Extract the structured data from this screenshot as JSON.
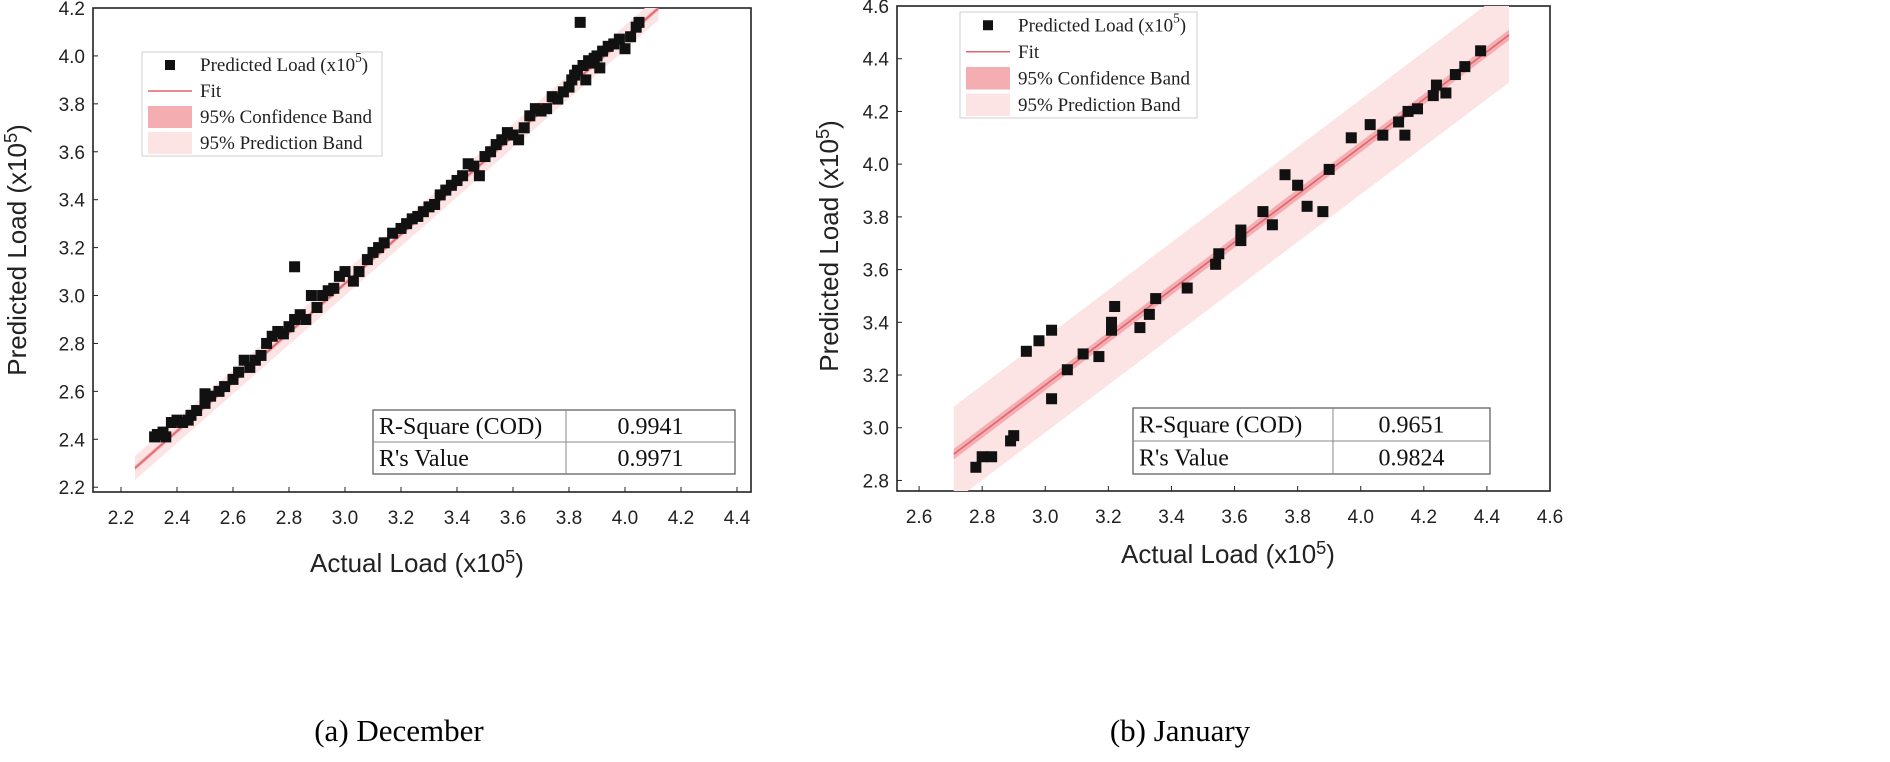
{
  "chart_data": [
    {
      "type": "scatter",
      "caption": "(a) December",
      "xlabel_prefix": "Actual Load (x10",
      "xlabel_sup": "5",
      "xlabel_suffix": ")",
      "ylabel_prefix": "Predicted Load (x10",
      "ylabel_sup": "5",
      "ylabel_suffix": ")",
      "xlim": [
        2.1,
        4.45
      ],
      "ylim": [
        2.18,
        4.2
      ],
      "xticks": [
        "2.2",
        "2.4",
        "2.6",
        "2.8",
        "3.0",
        "3.2",
        "3.4",
        "3.6",
        "3.8",
        "4.0",
        "4.2",
        "4.4"
      ],
      "yticks": [
        "2.2",
        "2.4",
        "2.6",
        "2.8",
        "3.0",
        "3.2",
        "3.4",
        "3.6",
        "3.8",
        "4.0",
        "4.2"
      ],
      "legend": [
        {
          "kind": "marker",
          "label": "Predicted Load (x10",
          "sup": "5",
          "suffix": ")"
        },
        {
          "kind": "line",
          "label": "Fit"
        },
        {
          "kind": "conf",
          "label": "95% Confidence Band"
        },
        {
          "kind": "pred",
          "label": "95% Prediction Band"
        }
      ],
      "fit": {
        "x": [
          2.25,
          4.12
        ],
        "y": [
          2.28,
          4.2
        ]
      },
      "confidence_halfwidth": 0.01,
      "prediction_halfwidth": 0.05,
      "stats": [
        {
          "label": "R-Square (COD)",
          "value": "0.9941"
        },
        {
          "label": "R's Value",
          "value": "0.9971"
        }
      ],
      "points": [
        [
          2.32,
          2.41
        ],
        [
          2.33,
          2.42
        ],
        [
          2.35,
          2.43
        ],
        [
          2.36,
          2.41
        ],
        [
          2.38,
          2.47
        ],
        [
          2.4,
          2.48
        ],
        [
          2.42,
          2.47
        ],
        [
          2.44,
          2.48
        ],
        [
          2.45,
          2.5
        ],
        [
          2.47,
          2.52
        ],
        [
          2.5,
          2.55
        ],
        [
          2.5,
          2.59
        ],
        [
          2.52,
          2.58
        ],
        [
          2.55,
          2.6
        ],
        [
          2.57,
          2.62
        ],
        [
          2.6,
          2.65
        ],
        [
          2.62,
          2.68
        ],
        [
          2.64,
          2.73
        ],
        [
          2.66,
          2.7
        ],
        [
          2.68,
          2.73
        ],
        [
          2.7,
          2.75
        ],
        [
          2.72,
          2.8
        ],
        [
          2.74,
          2.83
        ],
        [
          2.76,
          2.85
        ],
        [
          2.78,
          2.84
        ],
        [
          2.8,
          2.87
        ],
        [
          2.82,
          2.9
        ],
        [
          2.82,
          3.12
        ],
        [
          2.84,
          2.92
        ],
        [
          2.86,
          2.9
        ],
        [
          2.88,
          3.0
        ],
        [
          2.9,
          2.95
        ],
        [
          2.92,
          3.0
        ],
        [
          2.94,
          3.02
        ],
        [
          2.96,
          3.03
        ],
        [
          2.98,
          3.08
        ],
        [
          3.0,
          3.1
        ],
        [
          3.03,
          3.06
        ],
        [
          3.05,
          3.1
        ],
        [
          3.08,
          3.15
        ],
        [
          3.1,
          3.18
        ],
        [
          3.12,
          3.2
        ],
        [
          3.14,
          3.22
        ],
        [
          3.17,
          3.26
        ],
        [
          3.2,
          3.28
        ],
        [
          3.22,
          3.3
        ],
        [
          3.24,
          3.32
        ],
        [
          3.26,
          3.33
        ],
        [
          3.28,
          3.35
        ],
        [
          3.3,
          3.37
        ],
        [
          3.32,
          3.38
        ],
        [
          3.34,
          3.42
        ],
        [
          3.36,
          3.44
        ],
        [
          3.38,
          3.46
        ],
        [
          3.4,
          3.48
        ],
        [
          3.42,
          3.5
        ],
        [
          3.44,
          3.55
        ],
        [
          3.46,
          3.54
        ],
        [
          3.48,
          3.5
        ],
        [
          3.5,
          3.58
        ],
        [
          3.52,
          3.6
        ],
        [
          3.54,
          3.63
        ],
        [
          3.56,
          3.65
        ],
        [
          3.58,
          3.68
        ],
        [
          3.6,
          3.67
        ],
        [
          3.62,
          3.65
        ],
        [
          3.64,
          3.7
        ],
        [
          3.66,
          3.75
        ],
        [
          3.68,
          3.78
        ],
        [
          3.7,
          3.77
        ],
        [
          3.72,
          3.78
        ],
        [
          3.74,
          3.83
        ],
        [
          3.76,
          3.82
        ],
        [
          3.78,
          3.85
        ],
        [
          3.8,
          3.87
        ],
        [
          3.81,
          3.9
        ],
        [
          3.82,
          3.92
        ],
        [
          3.83,
          3.94
        ],
        [
          3.84,
          4.14
        ],
        [
          3.85,
          3.96
        ],
        [
          3.86,
          3.9
        ],
        [
          3.87,
          3.98
        ],
        [
          3.88,
          3.97
        ],
        [
          3.89,
          3.99
        ],
        [
          3.9,
          4.0
        ],
        [
          3.91,
          3.95
        ],
        [
          3.92,
          4.02
        ],
        [
          3.94,
          4.04
        ],
        [
          3.96,
          4.05
        ],
        [
          3.98,
          4.07
        ],
        [
          4.0,
          4.03
        ],
        [
          4.02,
          4.08
        ],
        [
          4.04,
          4.12
        ],
        [
          4.05,
          4.14
        ]
      ]
    },
    {
      "type": "scatter",
      "caption": "(b) January",
      "xlabel_prefix": "Actual Load (x10",
      "xlabel_sup": "5",
      "xlabel_suffix": ")",
      "ylabel_prefix": "Predicted Load (x10",
      "ylabel_sup": "5",
      "ylabel_suffix": ")",
      "xlim": [
        2.53,
        4.6
      ],
      "ylim": [
        2.76,
        4.6
      ],
      "xticks": [
        "2.6",
        "2.8",
        "3.0",
        "3.2",
        "3.4",
        "3.6",
        "3.8",
        "4.0",
        "4.2",
        "4.4",
        "4.6"
      ],
      "yticks": [
        "2.8",
        "3.0",
        "3.2",
        "3.4",
        "3.6",
        "3.8",
        "4.0",
        "4.2",
        "4.4",
        "4.6"
      ],
      "legend": [
        {
          "kind": "marker",
          "label": "Predicted Load (x10",
          "sup": "5",
          "suffix": ")"
        },
        {
          "kind": "line",
          "label": "Fit"
        },
        {
          "kind": "conf",
          "label": "95% Confidence Band"
        },
        {
          "kind": "pred",
          "label": "95% Prediction Band"
        }
      ],
      "fit": {
        "x": [
          2.71,
          4.47
        ],
        "y": [
          2.9,
          4.49
        ]
      },
      "confidence_halfwidth": 0.02,
      "prediction_halfwidth": 0.18,
      "stats": [
        {
          "label": "R-Square (COD)",
          "value": "0.9651"
        },
        {
          "label": "R's Value",
          "value": "0.9824"
        }
      ],
      "points": [
        [
          2.78,
          2.85
        ],
        [
          2.8,
          2.89
        ],
        [
          2.83,
          2.89
        ],
        [
          2.89,
          2.95
        ],
        [
          2.9,
          2.97
        ],
        [
          2.94,
          3.29
        ],
        [
          2.98,
          3.33
        ],
        [
          3.02,
          3.37
        ],
        [
          3.02,
          3.11
        ],
        [
          3.07,
          3.22
        ],
        [
          3.12,
          3.28
        ],
        [
          3.17,
          3.27
        ],
        [
          3.21,
          3.37
        ],
        [
          3.21,
          3.4
        ],
        [
          3.22,
          3.46
        ],
        [
          3.3,
          3.38
        ],
        [
          3.33,
          3.43
        ],
        [
          3.35,
          3.49
        ],
        [
          3.45,
          3.53
        ],
        [
          3.54,
          3.62
        ],
        [
          3.55,
          3.66
        ],
        [
          3.62,
          3.71
        ],
        [
          3.62,
          3.75
        ],
        [
          3.69,
          3.82
        ],
        [
          3.72,
          3.77
        ],
        [
          3.76,
          3.96
        ],
        [
          3.8,
          3.92
        ],
        [
          3.83,
          3.84
        ],
        [
          3.88,
          3.82
        ],
        [
          3.9,
          3.98
        ],
        [
          3.97,
          4.1
        ],
        [
          4.03,
          4.15
        ],
        [
          4.07,
          4.11
        ],
        [
          4.12,
          4.16
        ],
        [
          4.14,
          4.11
        ],
        [
          4.15,
          4.2
        ],
        [
          4.18,
          4.21
        ],
        [
          4.23,
          4.26
        ],
        [
          4.24,
          4.3
        ],
        [
          4.27,
          4.27
        ],
        [
          4.3,
          4.34
        ],
        [
          4.33,
          4.37
        ],
        [
          4.38,
          4.43
        ]
      ]
    }
  ]
}
